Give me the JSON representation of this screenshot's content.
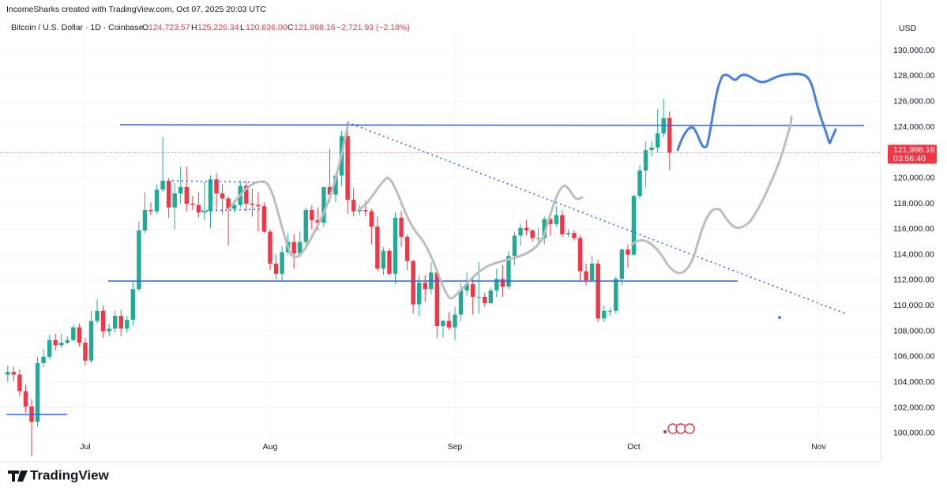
{
  "chart_data": {
    "type": "candlestick",
    "title": "IncomeSharks created with TradingView.com, Oct 07, 2025 20:03 UTC",
    "symbol": "Bitcoin / U.S. Dollar · 1D · Coinbase",
    "ohlc_header": {
      "o_key": "O",
      "o": "124,723.57",
      "h_key": "H",
      "h": "125,226.34",
      "l_key": "L",
      "l": "120,636.00",
      "c_key": "C",
      "c": "121,998.16",
      "change": "−2,721.93 (−2.18%)"
    },
    "currency": "USD",
    "last_price_label": "121,998.16",
    "countdown": "03:56:40",
    "brand": "TradingView",
    "up_color": "#22ab94",
    "down_color": "#f23645",
    "grid": true,
    "xlim": [
      -1.3,
      146.4
    ],
    "xticks": [
      {
        "value": 13,
        "label": "Jul"
      },
      {
        "value": 44,
        "label": "Aug"
      },
      {
        "value": 75,
        "label": "Sep"
      },
      {
        "value": 105,
        "label": "Oct"
      },
      {
        "value": 136,
        "label": "Nov"
      }
    ],
    "ylim": [
      99000,
      130870
    ],
    "yticks": [
      {
        "value": 100000,
        "label": "100,000.00"
      },
      {
        "value": 102000,
        "label": "102,000.00"
      },
      {
        "value": 104000,
        "label": "104,000.00"
      },
      {
        "value": 106000,
        "label": "106,000.00"
      },
      {
        "value": 108000,
        "label": "108,000.00"
      },
      {
        "value": 110000,
        "label": "110,000.00"
      },
      {
        "value": 112000,
        "label": "112,000.00"
      },
      {
        "value": 114000,
        "label": "114,000.00"
      },
      {
        "value": 116000,
        "label": "116,000.00"
      },
      {
        "value": 118000,
        "label": "118,000.00"
      },
      {
        "value": 120000,
        "label": "120,000.00"
      },
      {
        "value": 122000,
        "label": "122,000.00"
      },
      {
        "value": 124000,
        "label": "124,000.00"
      },
      {
        "value": 126000,
        "label": "126,000.00"
      },
      {
        "value": 128000,
        "label": "128,000.00"
      },
      {
        "value": 130000,
        "label": "130,000.00"
      }
    ],
    "last_price": 121998.16,
    "open": [
      104600,
      104800,
      104600,
      103300,
      102100,
      100900,
      105500,
      106000,
      107300,
      106900,
      107100,
      107300,
      108300,
      107100,
      105700,
      108800,
      109600,
      108000,
      108200,
      109200,
      108200,
      108900,
      111300,
      115900,
      117500,
      117400,
      119100,
      119800,
      117700,
      118800,
      119300,
      118000,
      117900,
      117300,
      117400,
      119900,
      118800,
      118400,
      117600,
      117900,
      119400,
      118000,
      117900,
      117800,
      115800,
      113300,
      112500,
      114200,
      115000,
      114100,
      115000,
      117500,
      116700,
      116500,
      119300,
      118700,
      120200,
      123300,
      118300,
      117400,
      117500,
      117400,
      116200,
      112900,
      114300,
      112500,
      116900,
      115400,
      113500,
      110100,
      111800,
      111300,
      112600,
      108400,
      108800,
      108300,
      109300,
      111200,
      111700,
      110700,
      110700,
      110200,
      111200,
      112100,
      111500,
      113900,
      115500,
      116100,
      115900,
      115300,
      115300,
      116800,
      116400,
      117100,
      115600,
      115700,
      115300,
      112700,
      112000,
      113300,
      109000,
      109600,
      109600,
      112100,
      114400,
      114000,
      118600,
      120600,
      122200,
      122400,
      123500,
      124723.57
    ],
    "high": [
      105300,
      105200,
      105000,
      103800,
      102700,
      106000,
      106600,
      107700,
      107800,
      107800,
      107600,
      108500,
      108600,
      107500,
      109600,
      110500,
      110000,
      108600,
      109600,
      109700,
      109200,
      111900,
      116600,
      118900,
      118100,
      119500,
      123200,
      120000,
      119600,
      120900,
      120900,
      118600,
      118900,
      119700,
      120200,
      120400,
      119500,
      118600,
      118300,
      119800,
      119800,
      119200,
      118900,
      118100,
      116000,
      114000,
      114700,
      115700,
      115600,
      115800,
      117700,
      117900,
      117700,
      119300,
      122300,
      120300,
      123700,
      124400,
      119200,
      117900,
      118200,
      117600,
      117000,
      114600,
      114500,
      117300,
      117400,
      115600,
      113600,
      112400,
      112400,
      113400,
      112600,
      108900,
      109500,
      109900,
      111800,
      112600,
      112200,
      113400,
      111000,
      111400,
      112900,
      113200,
      114300,
      115800,
      116400,
      116700,
      116000,
      116100,
      117000,
      117300,
      117800,
      117500,
      116000,
      115900,
      115500,
      113300,
      113900,
      113600,
      110000,
      109800,
      112300,
      114500,
      114800,
      118700,
      121000,
      122900,
      122900,
      125400,
      126200,
      125226.34
    ],
    "low": [
      104000,
      104100,
      102900,
      101600,
      98200,
      100500,
      105200,
      105800,
      106500,
      106700,
      107000,
      107200,
      106800,
      105300,
      105500,
      108600,
      107500,
      107600,
      107900,
      107600,
      107900,
      108400,
      111100,
      115700,
      117100,
      117200,
      118900,
      116900,
      116000,
      118000,
      117400,
      117500,
      116900,
      116700,
      116100,
      117400,
      117200,
      114700,
      117300,
      117700,
      117400,
      117000,
      115800,
      115700,
      112800,
      112100,
      111900,
      114000,
      112900,
      113800,
      114400,
      116000,
      115900,
      116200,
      118100,
      118100,
      119400,
      117200,
      117000,
      117100,
      117000,
      114800,
      112700,
      112400,
      112400,
      111700,
      114600,
      112800,
      109400,
      109200,
      110300,
      110900,
      107500,
      107500,
      108100,
      107300,
      108800,
      110800,
      109300,
      109400,
      109900,
      110100,
      110700,
      110700,
      111300,
      113200,
      114700,
      115500,
      115000,
      114900,
      114800,
      115500,
      116200,
      115400,
      115400,
      115100,
      112000,
      111600,
      111900,
      108700,
      108700,
      109200,
      109400,
      111600,
      113000,
      113900,
      118400,
      119300,
      121700,
      122000,
      123200,
      120636
    ],
    "close": [
      104800,
      104600,
      103300,
      102100,
      100900,
      105500,
      106000,
      107300,
      106900,
      107100,
      107300,
      108300,
      107100,
      105700,
      108800,
      109600,
      108000,
      108200,
      109200,
      108200,
      108900,
      111300,
      115900,
      117500,
      117400,
      119100,
      119800,
      117700,
      118800,
      119300,
      118000,
      117900,
      117300,
      117400,
      119900,
      118800,
      118400,
      117600,
      117900,
      119400,
      118000,
      117900,
      117800,
      115800,
      113300,
      112500,
      114200,
      115000,
      114100,
      115000,
      117500,
      116700,
      116500,
      119300,
      118700,
      120200,
      123300,
      118300,
      117400,
      117500,
      117400,
      116200,
      112900,
      114300,
      112500,
      116900,
      115400,
      113500,
      110100,
      111800,
      111300,
      112600,
      108400,
      108800,
      108300,
      109300,
      111200,
      111700,
      110700,
      110700,
      110200,
      111200,
      112100,
      111500,
      113900,
      115500,
      116100,
      115900,
      115300,
      115300,
      116800,
      116400,
      117100,
      115600,
      115700,
      115300,
      112700,
      112000,
      113300,
      109000,
      109600,
      109600,
      112100,
      114400,
      114000,
      118600,
      120600,
      122200,
      122400,
      123500,
      124700,
      121998.16
    ]
  }
}
